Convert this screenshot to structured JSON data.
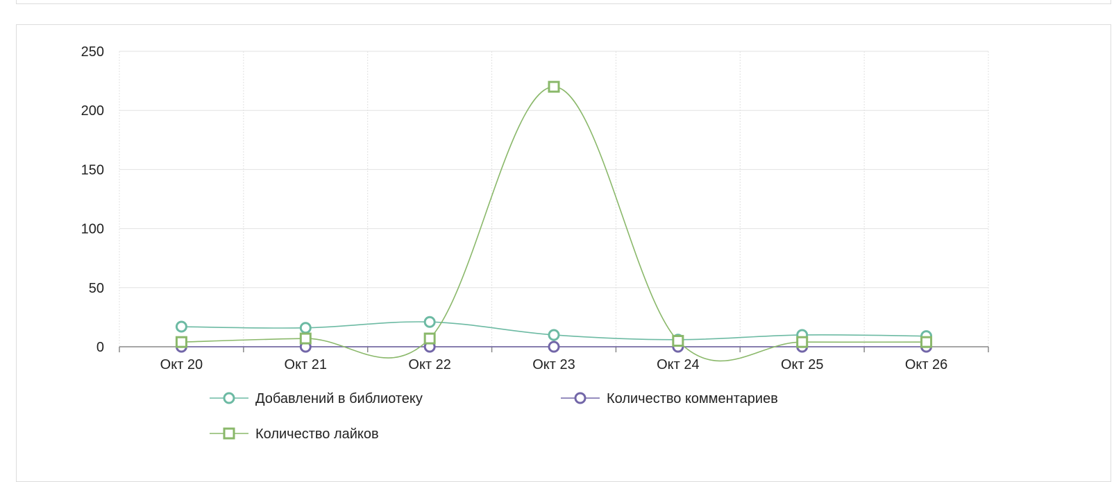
{
  "chart_data": {
    "type": "line",
    "categories": [
      "Окт 20",
      "Окт 21",
      "Окт 22",
      "Окт 23",
      "Окт 24",
      "Окт 25",
      "Окт 26"
    ],
    "ylim": [
      0,
      250
    ],
    "yticks": [
      "0",
      "50",
      "100",
      "150",
      "200",
      "250"
    ],
    "grid": true,
    "legend_position": "bottom",
    "series": [
      {
        "name": "Добавлений в библиотеку",
        "values": [
          17,
          16,
          21,
          10,
          6,
          10,
          9
        ],
        "color": "#6cbaa3",
        "marker": "circle"
      },
      {
        "name": "Количество комментариев",
        "values": [
          0,
          0,
          0,
          0,
          0,
          0,
          0
        ],
        "color": "#7266a8",
        "marker": "circle"
      },
      {
        "name": "Количество лайков",
        "values": [
          4,
          7,
          7,
          220,
          5,
          4,
          4
        ],
        "color": "#8ab86a",
        "marker": "square"
      }
    ]
  }
}
